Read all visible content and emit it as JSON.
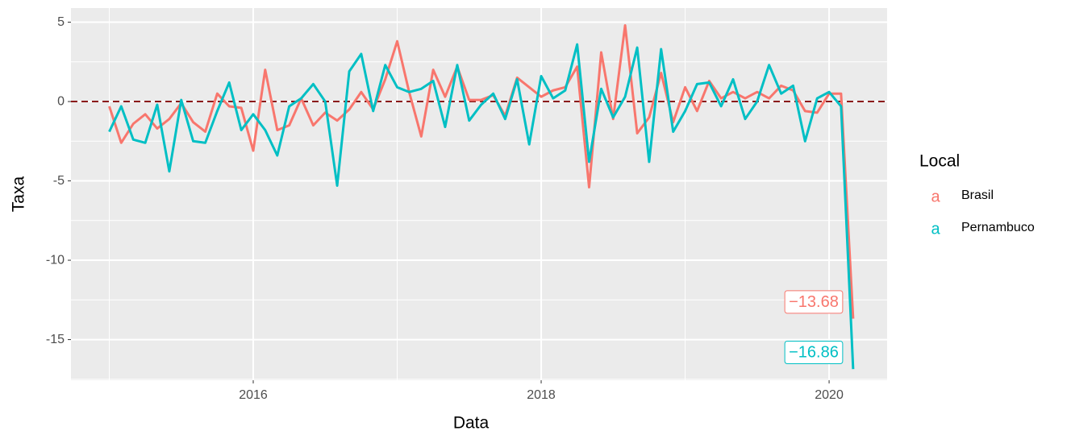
{
  "chart_data": {
    "type": "line",
    "x_label": "Data",
    "y_label": "Taxa",
    "legend_title": "Local",
    "legend_key_glyph": "a",
    "legend_position": "right",
    "x": [
      2015.0,
      2015.083,
      2015.167,
      2015.25,
      2015.333,
      2015.417,
      2015.5,
      2015.583,
      2015.667,
      2015.75,
      2015.833,
      2015.917,
      2016.0,
      2016.083,
      2016.167,
      2016.25,
      2016.333,
      2016.417,
      2016.5,
      2016.583,
      2016.667,
      2016.75,
      2016.833,
      2016.917,
      2017.0,
      2017.083,
      2017.167,
      2017.25,
      2017.333,
      2017.417,
      2017.5,
      2017.583,
      2017.667,
      2017.75,
      2017.833,
      2017.917,
      2018.0,
      2018.083,
      2018.167,
      2018.25,
      2018.333,
      2018.417,
      2018.5,
      2018.583,
      2018.667,
      2018.75,
      2018.833,
      2018.917,
      2019.0,
      2019.083,
      2019.167,
      2019.25,
      2019.333,
      2019.417,
      2019.5,
      2019.583,
      2019.667,
      2019.75,
      2019.833,
      2019.917,
      2020.0,
      2020.083,
      2020.167
    ],
    "series": [
      {
        "name": "Brasil",
        "color": "#f8766d",
        "end_label": "−13.68",
        "values": [
          -0.3,
          -2.6,
          -1.4,
          -0.8,
          -1.7,
          -1.1,
          -0.1,
          -1.3,
          -1.9,
          0.5,
          -0.3,
          -0.4,
          -3.1,
          2.0,
          -1.8,
          -1.5,
          0.2,
          -1.5,
          -0.7,
          -1.2,
          -0.5,
          0.6,
          -0.5,
          1.4,
          3.8,
          0.6,
          -2.2,
          2.0,
          0.3,
          2.2,
          0.1,
          0.1,
          0.4,
          -0.9,
          1.5,
          0.9,
          0.3,
          0.7,
          0.9,
          2.2,
          -5.4,
          3.1,
          -1.1,
          4.8,
          -2.0,
          -1.0,
          1.8,
          -1.3,
          0.9,
          -0.6,
          1.3,
          0.2,
          0.6,
          0.2,
          0.6,
          0.2,
          1.0,
          0.7,
          -0.6,
          -0.7,
          0.5,
          0.5,
          -13.68
        ]
      },
      {
        "name": "Pernambuco",
        "color": "#00bfc4",
        "end_label": "−16.86",
        "values": [
          -1.9,
          -0.3,
          -2.4,
          -2.6,
          -0.2,
          -4.4,
          0.1,
          -2.5,
          -2.6,
          -0.6,
          1.2,
          -1.8,
          -0.8,
          -1.8,
          -3.4,
          -0.3,
          0.2,
          1.1,
          0.0,
          -5.3,
          1.9,
          3.0,
          -0.6,
          2.3,
          0.9,
          0.6,
          0.8,
          1.3,
          -1.6,
          2.3,
          -1.2,
          -0.2,
          0.5,
          -1.1,
          1.4,
          -2.7,
          1.6,
          0.2,
          0.7,
          3.6,
          -3.8,
          0.8,
          -1.0,
          0.3,
          3.4,
          -3.8,
          3.3,
          -1.9,
          -0.6,
          1.1,
          1.2,
          -0.3,
          1.4,
          -1.1,
          0.0,
          2.3,
          0.5,
          1.0,
          -2.5,
          0.2,
          0.6,
          -0.3,
          -16.86
        ]
      }
    ],
    "xlim": [
      2014.734,
      2020.403
    ],
    "xticks": [
      2016,
      2018,
      2020
    ],
    "xminor": [
      2015,
      2017,
      2019
    ],
    "ylim": [
      -17.56,
      5.89
    ],
    "yticks": [
      5,
      0,
      -5,
      -10,
      -15
    ],
    "yminor": [
      2.5,
      -2.5,
      -7.5,
      -12.5,
      -17.5
    ],
    "grid": true,
    "hline": 0,
    "hline_color": "#8b1a1a"
  }
}
